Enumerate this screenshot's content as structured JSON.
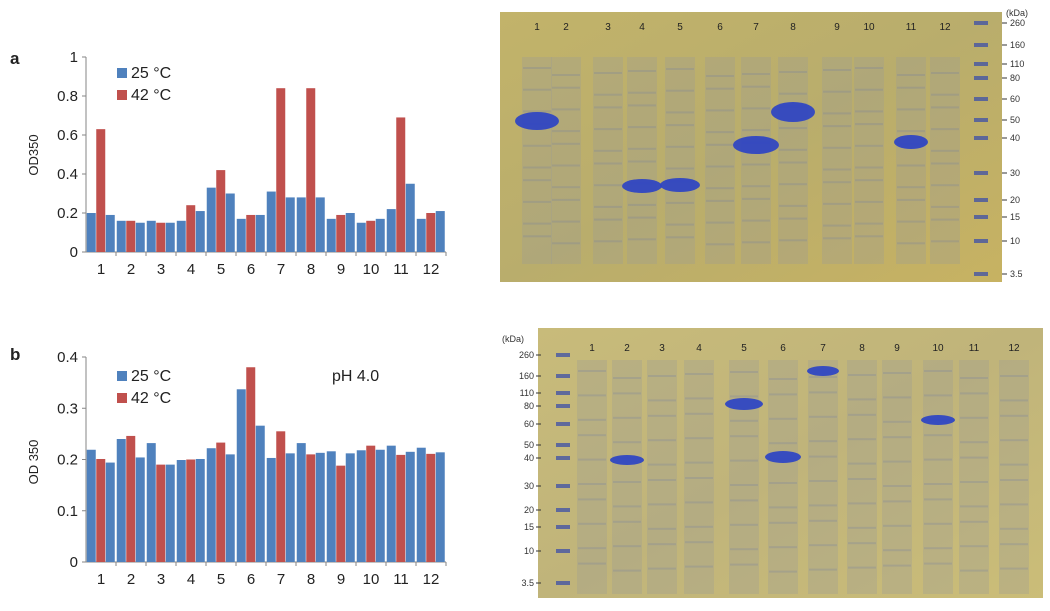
{
  "panels": [
    {
      "id": "a",
      "panel_label": "a",
      "note": "",
      "chart_data": {
        "type": "bar",
        "ylabel": "OD350",
        "ylim": [
          0,
          1
        ],
        "yticks": [
          "0",
          "0.2",
          "0.4",
          "0.6",
          "0.8",
          "1"
        ],
        "categories": [
          "1",
          "2",
          "3",
          "4",
          "5",
          "6",
          "7",
          "8",
          "9",
          "10",
          "11",
          "12"
        ],
        "series": [
          {
            "name": "25 °C",
            "color": "#4f81bd",
            "values": [
              0.2,
              0.16,
              0.16,
              0.16,
              0.33,
              0.17,
              0.31,
              0.28,
              0.17,
              0.15,
              0.22,
              0.17
            ]
          },
          {
            "name": "42  °C",
            "color": "#c0504d",
            "values": [
              0.63,
              0.16,
              0.15,
              0.24,
              0.42,
              0.19,
              0.84,
              0.84,
              0.19,
              0.16,
              0.69,
              0.2
            ]
          },
          {
            "name": "",
            "color": "#4f81bd",
            "values": [
              0.19,
              0.15,
              0.15,
              0.21,
              0.3,
              0.19,
              0.28,
              0.28,
              0.2,
              0.17,
              0.35,
              0.21
            ]
          }
        ],
        "legend": "top-left",
        "grid": false
      }
    },
    {
      "id": "b",
      "panel_label": "b",
      "note": "pH 4.0",
      "chart_data": {
        "type": "bar",
        "ylabel": "OD 350",
        "ylim": [
          0,
          0.4
        ],
        "yticks": [
          "0",
          "0.1",
          "0.2",
          "0.3",
          "0.4"
        ],
        "categories": [
          "1",
          "2",
          "3",
          "4",
          "5",
          "6",
          "7",
          "8",
          "9",
          "10",
          "11",
          "12"
        ],
        "series": [
          {
            "name": "25 °C",
            "color": "#4f81bd",
            "values": [
              0.219,
              0.24,
              0.232,
              0.199,
              0.222,
              0.337,
              0.203,
              0.232,
              0.216,
              0.218,
              0.227,
              0.223
            ]
          },
          {
            "name": "42  °C",
            "color": "#c0504d",
            "values": [
              0.201,
              0.246,
              0.19,
              0.2,
              0.233,
              0.38,
              0.255,
              0.21,
              0.188,
              0.227,
              0.209,
              0.211
            ]
          },
          {
            "name": "",
            "color": "#4f81bd",
            "values": [
              0.194,
              0.204,
              0.19,
              0.201,
              0.21,
              0.266,
              0.212,
              0.213,
              0.212,
              0.219,
              0.215,
              0.214
            ]
          }
        ],
        "legend": "top-left",
        "grid": false
      }
    }
  ],
  "gels": [
    {
      "id": "gel-a",
      "unit_label": "(kDa)",
      "lane_labels": [
        "1",
        "2",
        "3",
        "4",
        "5",
        "6",
        "7",
        "8",
        "9",
        "10",
        "11",
        "12"
      ],
      "marker_labels": [
        "260",
        "160",
        "110",
        "80",
        "60",
        "50",
        "40",
        "30",
        "20",
        "15",
        "10",
        "3.5"
      ],
      "bands": [
        {
          "lane": "1",
          "kDa": "50"
        },
        {
          "lane": "4",
          "kDa": "25"
        },
        {
          "lane": "5",
          "kDa": "25"
        },
        {
          "lane": "7",
          "kDa": "38"
        },
        {
          "lane": "8",
          "kDa": "52"
        },
        {
          "lane": "11",
          "kDa": "38"
        }
      ]
    },
    {
      "id": "gel-b",
      "unit_label": "(kDa)",
      "lane_labels": [
        "1",
        "2",
        "3",
        "4",
        "5",
        "6",
        "7",
        "8",
        "9",
        "10",
        "11",
        "12"
      ],
      "marker_labels": [
        "260",
        "160",
        "110",
        "80",
        "60",
        "50",
        "40",
        "30",
        "20",
        "15",
        "10",
        "3.5"
      ],
      "bands": [
        {
          "lane": "2",
          "kDa": "40"
        },
        {
          "lane": "5",
          "kDa": "80"
        },
        {
          "lane": "6",
          "kDa": "40"
        },
        {
          "lane": "7",
          "kDa": "170"
        },
        {
          "lane": "10",
          "kDa": "60"
        }
      ]
    }
  ]
}
